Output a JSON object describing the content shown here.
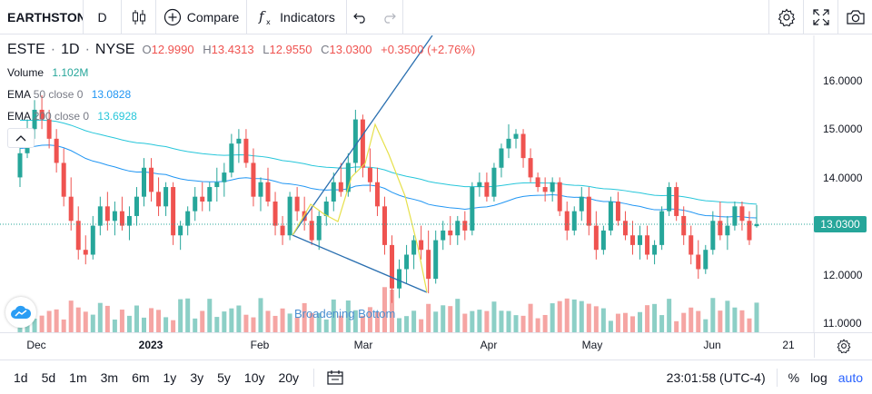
{
  "toolbar": {
    "symbol": "EARTHSTONE",
    "interval": "D",
    "compare_label": "Compare",
    "indicators_label": "Indicators"
  },
  "legend": {
    "symbol": "ESTE",
    "interval": "1D",
    "exchange": "NYSE",
    "open_label": "O",
    "open": "12.9990",
    "high_label": "H",
    "high": "13.4313",
    "low_label": "L",
    "low": "12.9550",
    "close_label": "C",
    "close": "13.0300",
    "change": "+0.3500 (+2.76%)",
    "volume_label": "Volume",
    "volume": "1.102M",
    "ema50_label": "EMA",
    "ema50_params": "50 close 0",
    "ema50_value": "13.0828",
    "ema200_label": "EMA",
    "ema200_params": "200 close 0",
    "ema200_value": "13.6928"
  },
  "price_axis": [
    "16.0000",
    "15.0000",
    "14.0000",
    "13.0000",
    "12.0000",
    "11.0000"
  ],
  "last_price": "13.0300",
  "time_axis": [
    {
      "label": "Dec",
      "bold": false
    },
    {
      "label": "2023",
      "bold": true
    },
    {
      "label": "Feb",
      "bold": false
    },
    {
      "label": "Mar",
      "bold": false
    },
    {
      "label": "Apr",
      "bold": false
    },
    {
      "label": "May",
      "bold": false
    },
    {
      "label": "Jun",
      "bold": false
    },
    {
      "label": "21",
      "bold": false
    }
  ],
  "pattern_label": "Broadening Bottom",
  "bottombar": {
    "ranges": [
      "1d",
      "5d",
      "1m",
      "3m",
      "6m",
      "1y",
      "3y",
      "5y",
      "10y",
      "20y"
    ],
    "clock": "23:01:58 (UTC-4)",
    "percent": "%",
    "log": "log",
    "auto": "auto"
  },
  "colors": {
    "up": "#26a69a",
    "down": "#ef5350",
    "ema50": "#2196f3",
    "ema200": "#26c6da",
    "pattern": "#2a6fb0",
    "accent": "#2962ff"
  },
  "chart_data": {
    "type": "candlestick",
    "ylim": [
      10.8,
      16.6
    ],
    "candles": [
      [
        14.0,
        14.7,
        13.8,
        14.5
      ],
      [
        14.5,
        15.2,
        14.4,
        15.0
      ],
      [
        15.0,
        15.6,
        14.8,
        15.4
      ],
      [
        15.4,
        15.7,
        15.0,
        15.2
      ],
      [
        15.2,
        15.4,
        14.6,
        14.8
      ],
      [
        14.8,
        15.0,
        14.1,
        14.3
      ],
      [
        14.3,
        14.6,
        13.4,
        13.6
      ],
      [
        13.6,
        14.0,
        12.9,
        13.1
      ],
      [
        13.1,
        13.4,
        12.3,
        12.5
      ],
      [
        12.5,
        12.8,
        12.2,
        12.4
      ],
      [
        12.4,
        13.2,
        12.3,
        13.0
      ],
      [
        13.0,
        13.6,
        12.8,
        13.4
      ],
      [
        13.4,
        13.7,
        12.9,
        13.1
      ],
      [
        13.1,
        13.5,
        12.8,
        13.3
      ],
      [
        13.3,
        13.6,
        12.9,
        13.0
      ],
      [
        13.0,
        13.4,
        12.7,
        13.2
      ],
      [
        13.2,
        13.8,
        13.0,
        13.6
      ],
      [
        13.6,
        14.4,
        13.4,
        14.2
      ],
      [
        14.2,
        14.4,
        13.5,
        13.7
      ],
      [
        13.7,
        14.0,
        13.2,
        13.4
      ],
      [
        13.4,
        13.9,
        13.2,
        13.8
      ],
      [
        13.8,
        13.9,
        12.6,
        12.8
      ],
      [
        12.8,
        13.1,
        12.5,
        13.0
      ],
      [
        13.0,
        13.4,
        12.8,
        13.3
      ],
      [
        13.3,
        13.8,
        13.1,
        13.6
      ],
      [
        13.6,
        13.9,
        13.3,
        13.5
      ],
      [
        13.5,
        13.9,
        13.3,
        13.8
      ],
      [
        13.8,
        14.2,
        13.5,
        13.9
      ],
      [
        13.9,
        14.3,
        13.6,
        14.1
      ],
      [
        14.1,
        14.9,
        14.0,
        14.7
      ],
      [
        14.7,
        15.0,
        14.3,
        14.8
      ],
      [
        14.8,
        15.0,
        14.2,
        14.3
      ],
      [
        14.3,
        14.6,
        13.4,
        13.6
      ],
      [
        13.6,
        14.0,
        13.3,
        13.9
      ],
      [
        13.9,
        14.2,
        13.4,
        13.5
      ],
      [
        13.5,
        13.7,
        12.8,
        13.0
      ],
      [
        13.0,
        13.2,
        12.6,
        12.8
      ],
      [
        12.8,
        13.7,
        12.7,
        13.6
      ],
      [
        13.6,
        13.8,
        13.1,
        13.3
      ],
      [
        13.3,
        13.6,
        12.9,
        13.1
      ],
      [
        13.1,
        13.4,
        12.6,
        12.7
      ],
      [
        12.7,
        13.3,
        12.5,
        13.2
      ],
      [
        13.2,
        13.6,
        13.0,
        13.5
      ],
      [
        13.5,
        14.1,
        13.3,
        13.9
      ],
      [
        13.9,
        14.3,
        13.6,
        13.7
      ],
      [
        13.7,
        14.5,
        13.6,
        14.3
      ],
      [
        14.3,
        15.4,
        14.1,
        15.2
      ],
      [
        15.2,
        15.3,
        14.0,
        14.2
      ],
      [
        14.2,
        14.6,
        13.7,
        13.9
      ],
      [
        13.9,
        14.2,
        13.2,
        13.4
      ],
      [
        13.4,
        13.6,
        12.4,
        12.6
      ],
      [
        12.6,
        12.8,
        11.4,
        11.7
      ],
      [
        11.7,
        12.3,
        11.5,
        12.1
      ],
      [
        12.1,
        12.6,
        11.8,
        12.4
      ],
      [
        12.4,
        12.8,
        12.1,
        12.7
      ],
      [
        12.7,
        13.0,
        12.3,
        12.5
      ],
      [
        12.5,
        12.9,
        11.6,
        11.9
      ],
      [
        11.9,
        12.9,
        11.8,
        12.7
      ],
      [
        12.7,
        13.1,
        12.5,
        12.9
      ],
      [
        12.9,
        13.2,
        12.6,
        12.8
      ],
      [
        12.8,
        13.2,
        12.6,
        13.1
      ],
      [
        13.1,
        13.3,
        12.7,
        12.9
      ],
      [
        12.9,
        13.9,
        12.8,
        13.8
      ],
      [
        13.8,
        14.1,
        13.6,
        13.9
      ],
      [
        13.9,
        14.1,
        13.5,
        13.6
      ],
      [
        13.6,
        14.3,
        13.5,
        14.2
      ],
      [
        14.2,
        14.7,
        14.0,
        14.6
      ],
      [
        14.6,
        15.1,
        14.4,
        14.8
      ],
      [
        14.8,
        15.0,
        14.6,
        14.9
      ],
      [
        14.9,
        15.0,
        14.2,
        14.4
      ],
      [
        14.4,
        14.6,
        13.9,
        14.0
      ],
      [
        14.0,
        14.1,
        13.7,
        13.8
      ],
      [
        13.8,
        14.0,
        13.5,
        13.7
      ],
      [
        13.7,
        14.0,
        13.5,
        13.9
      ],
      [
        13.9,
        14.0,
        13.2,
        13.3
      ],
      [
        13.3,
        13.5,
        12.7,
        12.9
      ],
      [
        12.9,
        13.4,
        12.8,
        13.3
      ],
      [
        13.3,
        13.8,
        13.1,
        13.6
      ],
      [
        13.6,
        13.8,
        12.8,
        13.0
      ],
      [
        13.0,
        13.3,
        12.3,
        12.5
      ],
      [
        12.5,
        13.0,
        12.4,
        12.9
      ],
      [
        12.9,
        13.6,
        12.8,
        13.5
      ],
      [
        13.5,
        13.7,
        13.0,
        13.1
      ],
      [
        13.1,
        13.3,
        12.7,
        12.8
      ],
      [
        12.8,
        13.1,
        12.4,
        12.6
      ],
      [
        12.6,
        13.0,
        12.3,
        12.8
      ],
      [
        12.8,
        13.0,
        12.3,
        12.4
      ],
      [
        12.4,
        12.7,
        12.2,
        12.6
      ],
      [
        12.6,
        13.4,
        12.5,
        13.3
      ],
      [
        13.3,
        13.9,
        13.2,
        13.8
      ],
      [
        13.8,
        13.9,
        13.1,
        13.2
      ],
      [
        13.2,
        13.4,
        12.6,
        12.8
      ],
      [
        12.8,
        13.0,
        12.2,
        12.4
      ],
      [
        12.4,
        12.7,
        11.9,
        12.1
      ],
      [
        12.1,
        12.6,
        12.0,
        12.5
      ],
      [
        12.5,
        13.3,
        12.4,
        13.1
      ],
      [
        13.1,
        13.5,
        12.7,
        12.8
      ],
      [
        12.8,
        13.2,
        12.5,
        13.0
      ],
      [
        13.0,
        13.5,
        12.9,
        13.4
      ],
      [
        13.4,
        13.5,
        12.9,
        13.1
      ],
      [
        13.1,
        13.3,
        12.6,
        12.7
      ],
      [
        12.99,
        13.43,
        12.96,
        13.03
      ]
    ]
  }
}
